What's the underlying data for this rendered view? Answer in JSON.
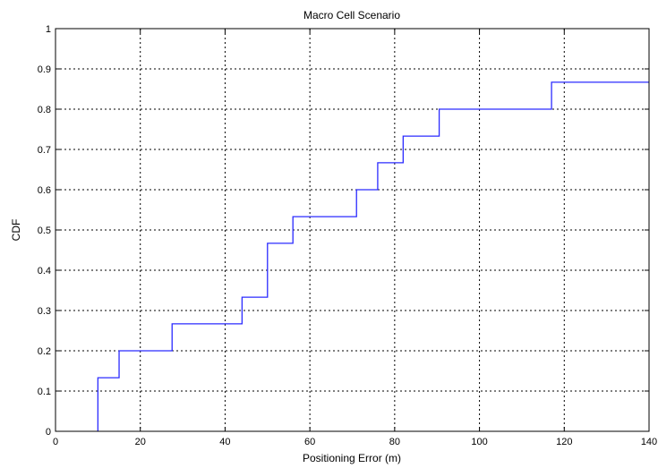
{
  "chart_data": {
    "type": "line",
    "title": "Macro Cell Scenario",
    "xlabel": "Positioning Error (m)",
    "ylabel": "CDF",
    "xlim": [
      0,
      140
    ],
    "ylim": [
      0,
      1
    ],
    "xticks": [
      0,
      20,
      40,
      60,
      80,
      100,
      120,
      140
    ],
    "yticks": [
      0,
      0.1,
      0.2,
      0.3,
      0.4,
      0.5,
      0.6,
      0.7,
      0.8,
      0.9,
      1
    ],
    "ytick_labels": [
      "0",
      "0.1",
      "0.2",
      "0.3",
      "0.4",
      "0.5",
      "0.6",
      "0.7",
      "0.8",
      "0.9",
      "1"
    ],
    "grid": true,
    "grid_style": "dotted",
    "step": "post",
    "series": [
      {
        "color": "#2b2bff",
        "x": [
          10,
          15,
          27.5,
          44,
          50,
          56,
          71,
          76,
          82,
          90.5,
          117,
          140
        ],
        "y": [
          0.133,
          0.2,
          0.267,
          0.333,
          0.467,
          0.533,
          0.6,
          0.667,
          0.733,
          0.8,
          0.867,
          0.867
        ]
      }
    ]
  }
}
